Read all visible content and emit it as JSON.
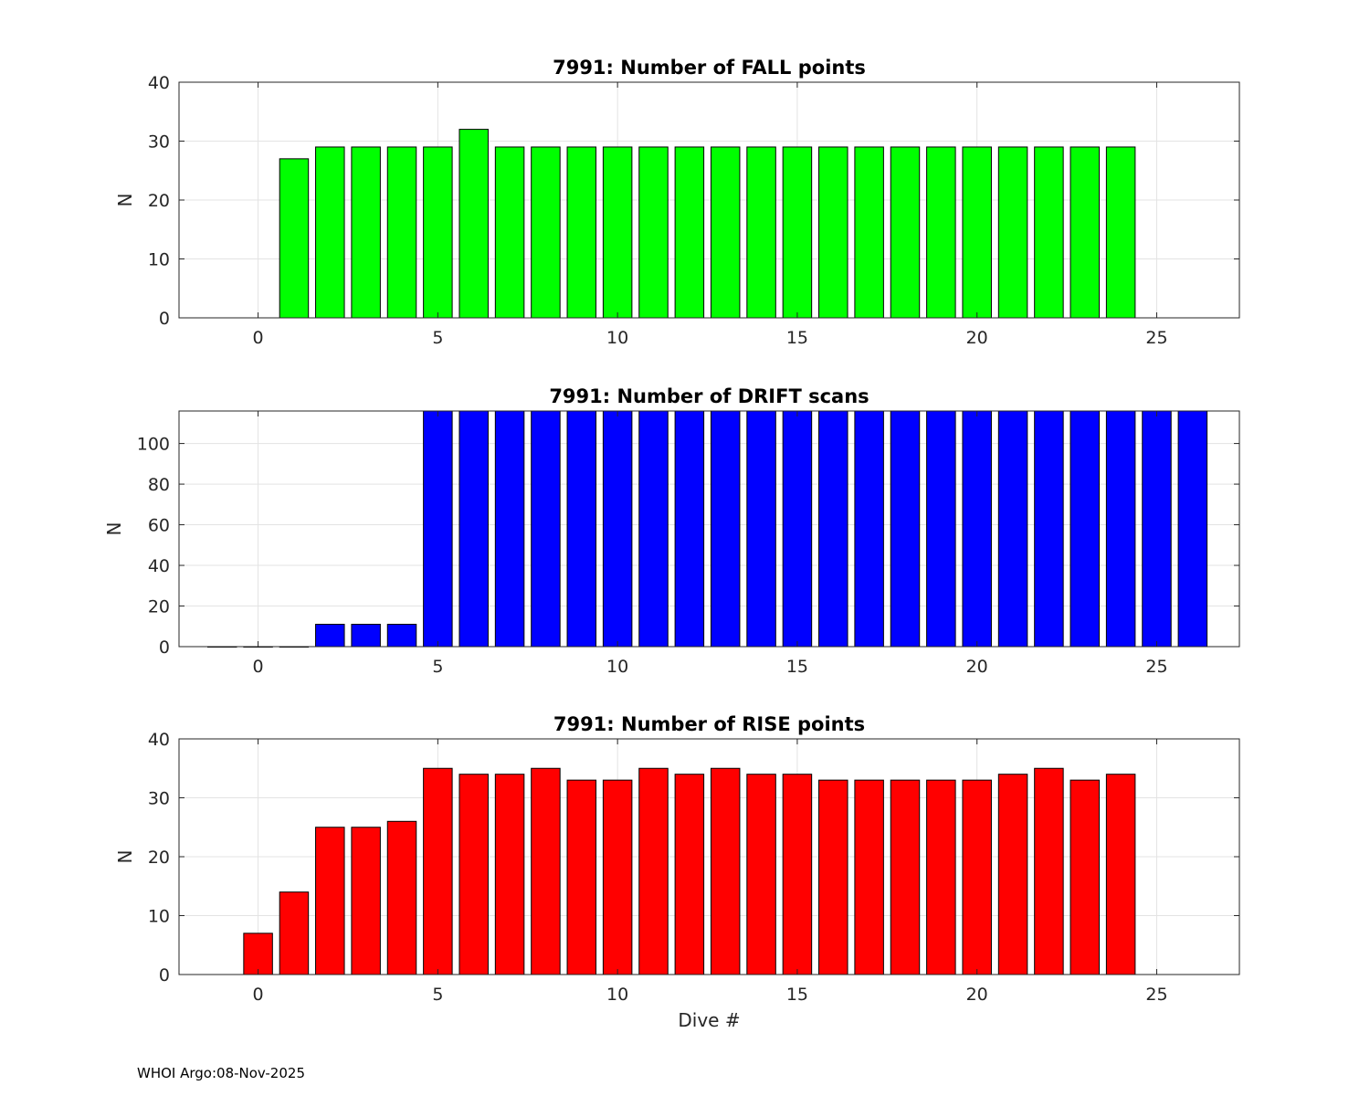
{
  "footer": "WHOI Argo:08-Nov-2025",
  "chart_data": [
    {
      "type": "bar",
      "title": "7991: Number of FALL points",
      "ylabel": "N",
      "xlabel": "",
      "color": "#00ff00",
      "xlim": [
        -2.2,
        27.3
      ],
      "ylim": [
        0,
        40
      ],
      "xticks": [
        0,
        5,
        10,
        15,
        20,
        25
      ],
      "yticks": [
        0,
        10,
        20,
        30,
        40
      ],
      "grid": true,
      "x": [
        1,
        2,
        3,
        4,
        5,
        6,
        7,
        8,
        9,
        10,
        11,
        12,
        13,
        14,
        15,
        16,
        17,
        18,
        19,
        20,
        21,
        22,
        23,
        24
      ],
      "values": [
        27,
        29,
        29,
        29,
        29,
        32,
        29,
        29,
        29,
        29,
        29,
        29,
        29,
        29,
        29,
        29,
        29,
        29,
        29,
        29,
        29,
        29,
        29,
        29
      ]
    },
    {
      "type": "bar",
      "title": "7991: Number of DRIFT scans",
      "ylabel": "N",
      "xlabel": "",
      "color": "#0000ff",
      "xlim": [
        -2.2,
        27.3
      ],
      "ylim": [
        0,
        116
      ],
      "xticks": [
        0,
        5,
        10,
        15,
        20,
        25
      ],
      "yticks": [
        0,
        20,
        40,
        60,
        80,
        100
      ],
      "grid": true,
      "x": [
        -1,
        0,
        1,
        2,
        3,
        4,
        5,
        6,
        7,
        8,
        9,
        10,
        11,
        12,
        13,
        14,
        15,
        16,
        17,
        18,
        19,
        20,
        21,
        22,
        23,
        24,
        25,
        26
      ],
      "values": [
        0,
        0,
        0,
        11,
        11,
        11,
        116,
        116,
        116,
        116,
        116,
        116,
        116,
        116,
        116,
        116,
        116,
        116,
        116,
        116,
        116,
        116,
        116,
        116,
        116,
        116,
        116,
        116
      ]
    },
    {
      "type": "bar",
      "title": "7991: Number of RISE points",
      "ylabel": "N",
      "xlabel": "Dive #",
      "color": "#ff0000",
      "xlim": [
        -2.2,
        27.3
      ],
      "ylim": [
        0,
        40
      ],
      "xticks": [
        0,
        5,
        10,
        15,
        20,
        25
      ],
      "yticks": [
        0,
        10,
        20,
        30,
        40
      ],
      "grid": true,
      "x": [
        0,
        1,
        2,
        3,
        4,
        5,
        6,
        7,
        8,
        9,
        10,
        11,
        12,
        13,
        14,
        15,
        16,
        17,
        18,
        19,
        20,
        21,
        22,
        23,
        24
      ],
      "values": [
        7,
        14,
        25,
        25,
        26,
        35,
        34,
        34,
        35,
        33,
        33,
        35,
        34,
        35,
        34,
        34,
        33,
        33,
        33,
        33,
        33,
        34,
        35,
        33,
        34
      ]
    }
  ]
}
